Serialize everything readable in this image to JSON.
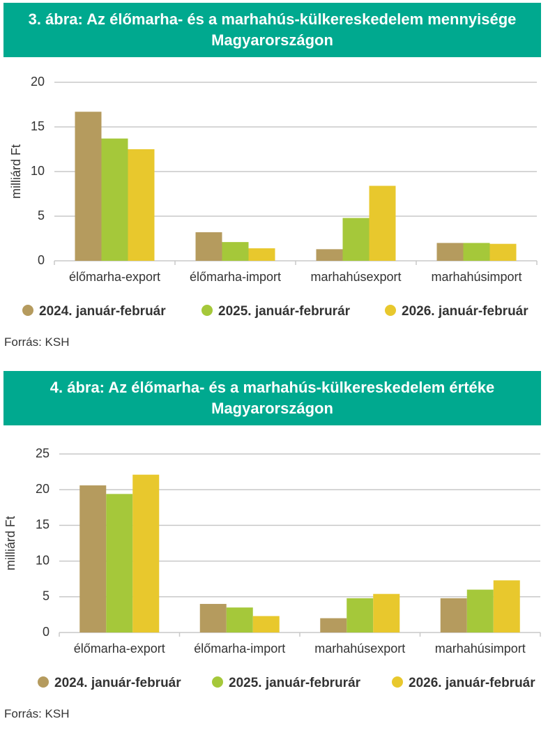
{
  "chart_data": [
    {
      "type": "bar",
      "title": "3. ábra: Az élőmarha- és a marhahús-külkereskedelem mennyisége Magyarországon",
      "y_label": "milliárd Ft",
      "source": "Forrás: KSH",
      "categories": [
        "élőmarha-export",
        "élőmarha-import",
        "marhahúsexport",
        "marhahúsimport"
      ],
      "series": [
        {
          "name": "2024. január-február",
          "color": "#b59b5e",
          "values": [
            16.7,
            3.2,
            1.3,
            2.0
          ]
        },
        {
          "name": "2025. január-februrár",
          "color": "#a5c83a",
          "values": [
            13.7,
            2.1,
            4.8,
            2.0
          ]
        },
        {
          "name": "2026. január-február",
          "color": "#e8c82d",
          "values": [
            12.5,
            1.4,
            8.4,
            1.9
          ]
        }
      ],
      "ylim": [
        0,
        20
      ],
      "yticks": [
        0,
        5,
        10,
        15,
        20
      ],
      "grid": true
    },
    {
      "type": "bar",
      "title": "4. ábra: Az élőmarha- és a marhahús-külkereskedelem értéke Magyarországon",
      "y_label": "milliárd Ft",
      "source": "Forrás: KSH",
      "categories": [
        "élőmarha-export",
        "élőmarha-import",
        "marhahúsexport",
        "marhahúsimport"
      ],
      "series": [
        {
          "name": "2024. január-február",
          "color": "#b59b5e",
          "values": [
            20.6,
            4.0,
            2.0,
            4.8
          ]
        },
        {
          "name": "2025. január-februrár",
          "color": "#a5c83a",
          "values": [
            19.4,
            3.5,
            4.8,
            6.0
          ]
        },
        {
          "name": "2026. január-február",
          "color": "#e8c82d",
          "values": [
            22.1,
            2.3,
            5.4,
            7.3
          ]
        }
      ],
      "ylim": [
        0,
        25
      ],
      "yticks": [
        0,
        5,
        10,
        15,
        20,
        25
      ],
      "grid": true
    }
  ]
}
